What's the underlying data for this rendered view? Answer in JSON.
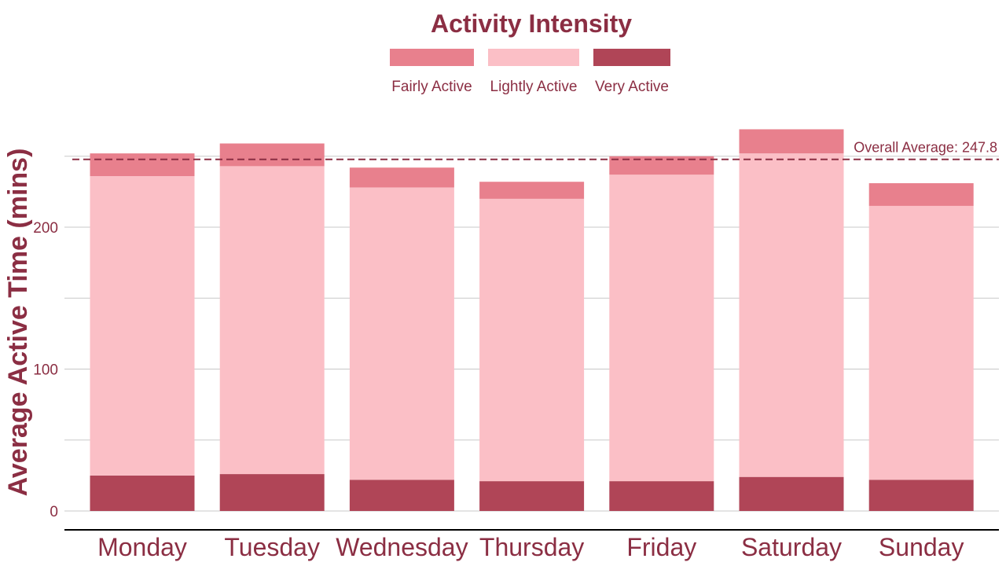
{
  "chart_data": {
    "type": "bar",
    "stacked": true,
    "categories": [
      "Monday",
      "Tuesday",
      "Wednesday",
      "Thursday",
      "Friday",
      "Saturday",
      "Sunday"
    ],
    "series": [
      {
        "name": "Very Active",
        "color": "#b04557",
        "values": [
          25,
          26,
          22,
          21,
          21,
          24,
          22
        ]
      },
      {
        "name": "Lightly Active",
        "color": "#fbbfc6",
        "values": [
          211,
          217,
          206,
          199,
          216,
          228,
          193
        ]
      },
      {
        "name": "Fairly Active",
        "color": "#e8808d",
        "values": [
          16,
          16,
          14,
          12,
          13,
          17,
          16
        ]
      }
    ],
    "legend": {
      "title": "Activity Intensity",
      "position": "top",
      "entries": [
        "Fairly Active",
        "Lightly Active",
        "Very Active"
      ]
    },
    "reference_line": {
      "value": 247.8,
      "label": "Overall Average: 247.8",
      "style": "dashed",
      "color": "#8b2e43"
    },
    "ylabel": "Average Active Time (mins)",
    "xlabel": "",
    "yticks": [
      0,
      100,
      200
    ],
    "ylim": [
      0,
      272
    ],
    "grid": true,
    "text_color": "#8b2e43"
  }
}
